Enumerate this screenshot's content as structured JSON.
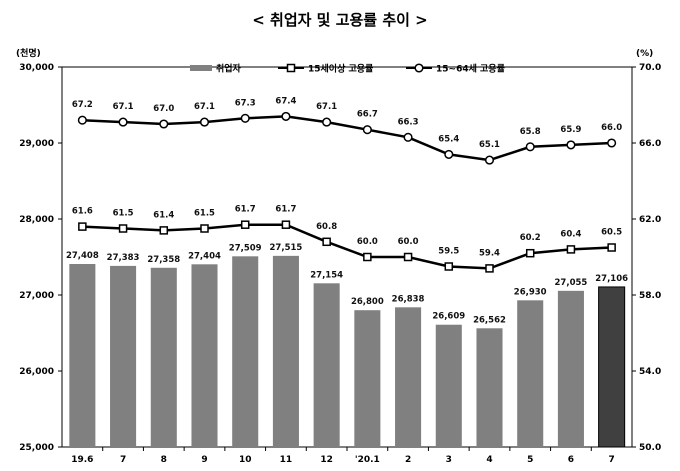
{
  "chart_data": {
    "type": "bar",
    "title": "< 취업자 및 고용률 추이 >",
    "left_unit": "(천명)",
    "right_unit": "(%)",
    "categories": [
      "19.6",
      "7",
      "8",
      "9",
      "10",
      "11",
      "12",
      "'20.1",
      "2",
      "3",
      "4",
      "5",
      "6",
      "7"
    ],
    "y_left": {
      "min": 25000,
      "max": 30000,
      "ticks": [
        "25,000",
        "26,000",
        "27,000",
        "28,000",
        "29,000",
        "30,000"
      ]
    },
    "y_right": {
      "min": 50.0,
      "max": 70.0,
      "ticks": [
        "50.0",
        "54.0",
        "58.0",
        "62.0",
        "66.0",
        "70.0"
      ]
    },
    "series": [
      {
        "name": "취업자",
        "kind": "bar",
        "axis": "left",
        "values": [
          27408,
          27383,
          27358,
          27404,
          27509,
          27515,
          27154,
          26800,
          26838,
          26609,
          26562,
          26930,
          27055,
          27106
        ],
        "labels": [
          "27,408",
          "27,383",
          "27,358",
          "27,404",
          "27,509",
          "27,515",
          "27,154",
          "26,800",
          "26,838",
          "26,609",
          "26,562",
          "26,930",
          "27,055",
          "27,106"
        ],
        "color": "#808080",
        "highlight_color": "#404040"
      },
      {
        "name": "15세이상 고용률",
        "kind": "line",
        "axis": "right",
        "marker": "square",
        "values": [
          61.6,
          61.5,
          61.4,
          61.5,
          61.7,
          61.7,
          60.8,
          60.0,
          60.0,
          59.5,
          59.4,
          60.2,
          60.4,
          60.5
        ],
        "labels": [
          "61.6",
          "61.5",
          "61.4",
          "61.5",
          "61.7",
          "61.7",
          "60.8",
          "60.0",
          "60.0",
          "59.5",
          "59.4",
          "60.2",
          "60.4",
          "60.5"
        ],
        "color": "#000000"
      },
      {
        "name": "15~64세 고용률",
        "kind": "line",
        "axis": "right",
        "marker": "circle",
        "values": [
          67.2,
          67.1,
          67.0,
          67.1,
          67.3,
          67.4,
          67.1,
          66.7,
          66.3,
          65.4,
          65.1,
          65.8,
          65.9,
          66.0
        ],
        "labels": [
          "67.2",
          "67.1",
          "67.0",
          "67.1",
          "67.3",
          "67.4",
          "67.1",
          "66.7",
          "66.3",
          "65.4",
          "65.1",
          "65.8",
          "65.9",
          "66.0"
        ],
        "color": "#000000"
      }
    ],
    "legend_position": "top-center",
    "grid": false
  }
}
